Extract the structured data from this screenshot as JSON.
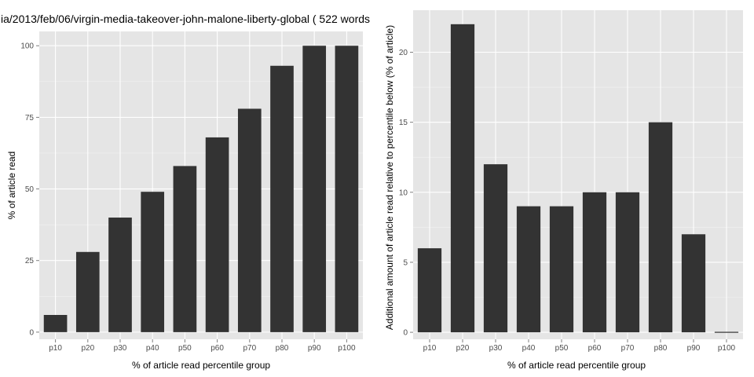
{
  "colors": {
    "panel": "#e5e5e5",
    "grid_major": "#ffffff",
    "grid_minor": "#f2f2f2",
    "bar": "#333333",
    "tick_text": "#4d4d4d"
  },
  "chart_data": [
    {
      "type": "bar",
      "title": "ia/2013/feb/06/virgin-media-takeover-john-malone-liberty-global ( 522 words",
      "xlabel": "% of article read percentile group",
      "ylabel": "% of article read",
      "categories": [
        "p10",
        "p20",
        "p30",
        "p40",
        "p50",
        "p60",
        "p70",
        "p80",
        "p90",
        "p100"
      ],
      "values": [
        6,
        28,
        40,
        49,
        58,
        68,
        78,
        93,
        100,
        100
      ],
      "ylim": [
        -2.5,
        105
      ],
      "yticks": [
        0,
        25,
        50,
        75,
        100
      ],
      "ytick_labels": [
        "0",
        "25",
        "50",
        "75",
        "100"
      ],
      "grid": true
    },
    {
      "type": "bar",
      "title": "",
      "xlabel": "% of article read percentile group",
      "ylabel": "Additional amount of article read relative to percentile below (% of article)",
      "categories": [
        "p10",
        "p20",
        "p30",
        "p40",
        "p50",
        "p60",
        "p70",
        "p80",
        "p90",
        "p100"
      ],
      "values": [
        6,
        22,
        12,
        9,
        9,
        10,
        10,
        15,
        7,
        0
      ],
      "ylim": [
        -0.5,
        23
      ],
      "yticks": [
        0,
        5,
        10,
        15,
        20
      ],
      "ytick_labels": [
        "0",
        "5",
        "10",
        "15",
        "20"
      ],
      "grid": true
    }
  ]
}
